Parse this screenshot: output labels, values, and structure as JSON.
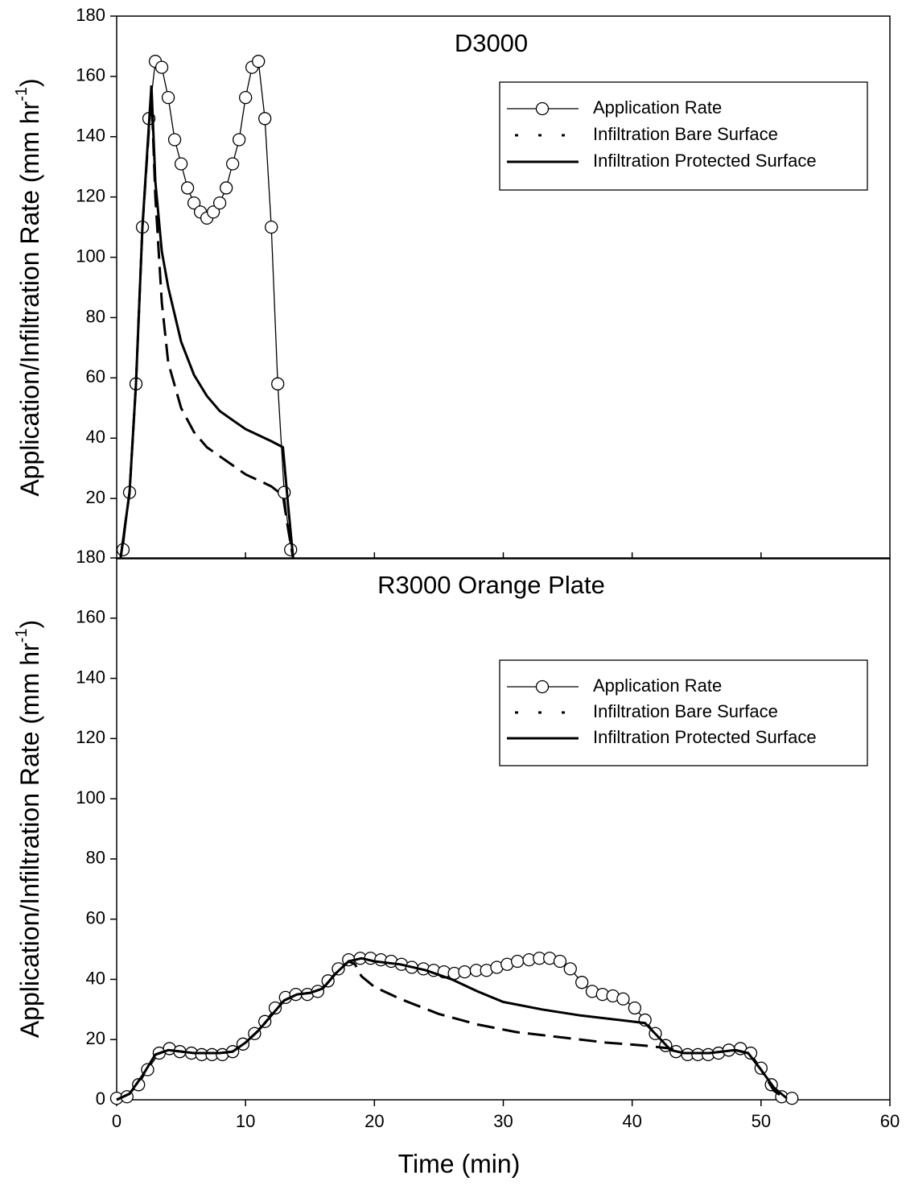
{
  "chart_data": [
    {
      "type": "line",
      "title": "D3000",
      "ylabel": [
        "Application/Infiltration Rate (mm hr",
        "-1",
        ")"
      ],
      "xlim": [
        0,
        60
      ],
      "xticks": [
        10,
        20,
        30,
        40,
        50
      ],
      "ylim": [
        0,
        180
      ],
      "yticks": [
        20,
        40,
        60,
        80,
        100,
        120,
        140,
        160,
        180
      ],
      "legend": "upper right",
      "series": [
        {
          "name": "Application Rate",
          "color": "#000000",
          "style": "solid",
          "marker": "circle",
          "x": [
            0.5,
            1.0,
            1.5,
            2.0,
            2.5,
            3.0,
            3.5,
            4.0,
            4.5,
            5.0,
            5.5,
            6.0,
            6.5,
            7.0,
            7.5,
            8.0,
            8.5,
            9.0,
            9.5,
            10.0,
            10.5,
            11.0,
            11.5,
            12.0,
            12.5,
            13.0,
            13.5
          ],
          "values": [
            3,
            22,
            58,
            110,
            146,
            165,
            163,
            153,
            139,
            131,
            123,
            118,
            115,
            113,
            115,
            118,
            123,
            131,
            139,
            153,
            163,
            165,
            146,
            110,
            58,
            22,
            3
          ]
        },
        {
          "name": "Infiltration Bare Surface",
          "color": "#000000",
          "style": "dashed",
          "x": [
            0.3,
            1.0,
            1.5,
            2.0,
            2.7,
            3.0,
            3.5,
            4.0,
            5.0,
            6.0,
            7.0,
            8.0,
            9.0,
            10.0,
            11.0,
            12.0,
            12.9,
            13.3,
            13.7
          ],
          "values": [
            0,
            22,
            58,
            110,
            155,
            120,
            85,
            65,
            50,
            42,
            37,
            34,
            31,
            28,
            26,
            24,
            21,
            10,
            0
          ]
        },
        {
          "name": "Infiltration Protected Surface",
          "color": "#000000",
          "style": "solid",
          "x": [
            0.3,
            1.0,
            1.5,
            2.0,
            2.7,
            3.0,
            3.5,
            4.0,
            5.0,
            6.0,
            7.0,
            8.0,
            9.0,
            10.0,
            11.0,
            12.0,
            12.9,
            13.3,
            13.7
          ],
          "values": [
            0,
            22,
            58,
            110,
            157,
            125,
            102,
            90,
            72,
            61,
            54,
            49,
            46,
            43,
            41,
            39,
            37,
            18,
            0
          ]
        }
      ]
    },
    {
      "type": "line",
      "title": "R3000 Orange Plate",
      "ylabel": [
        "Application/Infiltration Rate (mm hr",
        "-1",
        ")"
      ],
      "xlabel": "Time (min)",
      "xlim": [
        0,
        60
      ],
      "xticks": [
        0,
        10,
        20,
        30,
        40,
        50,
        60
      ],
      "ylim": [
        0,
        180
      ],
      "yticks": [
        0,
        20,
        40,
        60,
        80,
        100,
        120,
        140,
        160,
        180
      ],
      "legend": "upper right",
      "series": [
        {
          "name": "Application Rate",
          "color": "#000000",
          "style": "solid",
          "marker": "circle",
          "x": [
            0,
            0.8,
            1.7,
            2.4,
            3.3,
            4.1,
            4.9,
            5.8,
            6.6,
            7.4,
            8.2,
            9.0,
            9.8,
            10.7,
            11.5,
            12.3,
            13.1,
            13.9,
            14.8,
            15.6,
            16.4,
            17.2,
            18.0,
            18.9,
            19.7,
            20.5,
            21.3,
            22.1,
            22.9,
            23.8,
            24.6,
            25.4,
            26.2,
            27.0,
            27.9,
            28.7,
            29.5,
            30.3,
            31.1,
            32.0,
            32.8,
            33.6,
            34.4,
            35.2,
            36.1,
            36.9,
            37.7,
            38.5,
            39.3,
            40.2,
            41.0,
            41.8,
            42.6,
            43.4,
            44.3,
            45.1,
            45.9,
            46.7,
            47.5,
            48.4,
            49.2,
            50.0,
            50.8,
            51.6,
            52.4
          ],
          "values": [
            0.5,
            1,
            5,
            10,
            15.5,
            17,
            16,
            15.5,
            15,
            15,
            15,
            16,
            18.5,
            22,
            26,
            30.5,
            34,
            35,
            35,
            36,
            39.5,
            43.5,
            46.5,
            47,
            47,
            46.5,
            46,
            45,
            44,
            43.5,
            43,
            42.5,
            42,
            42.5,
            43,
            43,
            44,
            45,
            46,
            46.5,
            47,
            47,
            46,
            43.5,
            39,
            36,
            35,
            34.5,
            33.5,
            30.5,
            26.5,
            22,
            18,
            16,
            15,
            15,
            15,
            15.5,
            16.5,
            17,
            15.5,
            10.5,
            5,
            1,
            0.5
          ]
        },
        {
          "name": "Infiltration Bare Surface",
          "color": "#000000",
          "style": "dashed",
          "x": [
            0,
            1,
            2,
            3,
            4,
            6,
            8,
            9,
            10,
            11,
            12,
            13,
            14,
            15,
            16,
            17,
            18,
            18.5,
            19,
            20,
            22,
            25,
            28,
            31,
            35,
            38,
            41,
            43,
            44,
            46,
            48,
            49,
            50,
            51,
            52
          ],
          "values": [
            0,
            2,
            8,
            15,
            16.5,
            15.5,
            15.5,
            16,
            19,
            23,
            28,
            33,
            35,
            35.5,
            37,
            42,
            46,
            45,
            41,
            37.5,
            33.5,
            28.5,
            25,
            22.5,
            20.5,
            19,
            18,
            17,
            15.5,
            15.5,
            16.5,
            15.5,
            10,
            3,
            0
          ]
        },
        {
          "name": "Infiltration Protected Surface",
          "color": "#000000",
          "style": "solid",
          "x": [
            0,
            1,
            2,
            3,
            4,
            6,
            8,
            9,
            10,
            11,
            12,
            13,
            14,
            15,
            16,
            17,
            18,
            19,
            20,
            22,
            24,
            26,
            28,
            30,
            33,
            36,
            39,
            41,
            42,
            43,
            44,
            46,
            48,
            49,
            50,
            51,
            52
          ],
          "values": [
            0,
            2,
            8,
            15,
            16.5,
            15.5,
            15.5,
            16,
            19,
            23,
            28,
            33,
            35,
            35.5,
            37,
            42,
            46,
            47,
            46,
            45,
            43,
            40,
            36,
            32.5,
            30,
            28,
            26.5,
            25.5,
            21,
            16.5,
            15.5,
            15.5,
            16.5,
            15.5,
            10,
            4,
            0.5
          ]
        }
      ]
    }
  ]
}
